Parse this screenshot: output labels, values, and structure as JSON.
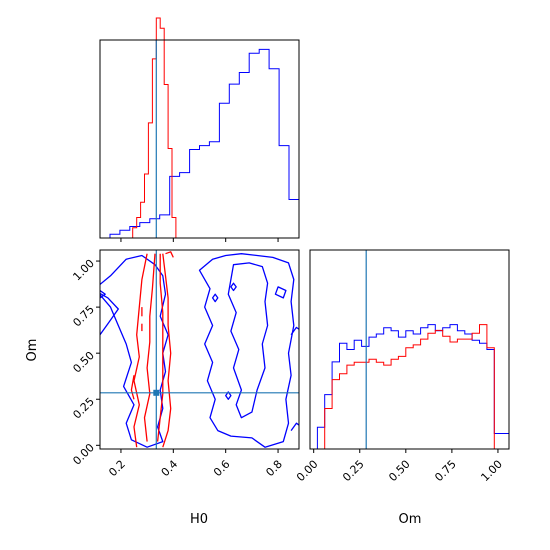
{
  "chart_data": {
    "type": "corner",
    "parameters": [
      "H0",
      "Om"
    ],
    "truths": {
      "H0": 0.335,
      "Om": 0.285
    },
    "colors": {
      "run_a": "#0000ff",
      "run_b": "#ff0000",
      "truth": "#1f77b4"
    },
    "H0_range": [
      0.12,
      0.88
    ],
    "Om_range": [
      -0.02,
      1.06
    ],
    "H0_ticks": [
      "0.2",
      "0.4",
      "0.6",
      "0.8"
    ],
    "Om_ticks": [
      "0.00",
      "0.25",
      "0.50",
      "0.75",
      "1.00"
    ],
    "xlabel_h0": "H0",
    "xlabel_om": "Om",
    "ylabel_om": "Om",
    "h0_hist_blue": {
      "edges": [
        0.12,
        0.158,
        0.196,
        0.234,
        0.272,
        0.31,
        0.348,
        0.386,
        0.424,
        0.462,
        0.5,
        0.538,
        0.576,
        0.614,
        0.652,
        0.69,
        0.728,
        0.766,
        0.804,
        0.842,
        0.88
      ],
      "counts": [
        0,
        2,
        4,
        6,
        8,
        10,
        12,
        32,
        34,
        46,
        48,
        50,
        70,
        80,
        86,
        96,
        98,
        88,
        48,
        20
      ]
    },
    "h0_hist_red": {
      "edges": [
        0.23,
        0.245,
        0.26,
        0.275,
        0.29,
        0.305,
        0.32,
        0.335,
        0.35,
        0.365,
        0.38,
        0.395,
        0.41
      ],
      "counts": [
        0,
        4,
        8,
        14,
        25,
        45,
        70,
        86,
        82,
        60,
        35,
        8
      ]
    },
    "om_hist_blue": {
      "edges": [
        -0.02,
        0.02,
        0.06,
        0.1,
        0.14,
        0.18,
        0.22,
        0.26,
        0.3,
        0.34,
        0.38,
        0.42,
        0.46,
        0.5,
        0.54,
        0.58,
        0.62,
        0.66,
        0.7,
        0.74,
        0.78,
        0.82,
        0.86,
        0.9,
        0.94,
        0.98,
        1.02,
        1.06
      ],
      "counts": [
        0,
        14,
        35,
        56,
        68,
        64,
        70,
        66,
        72,
        74,
        78,
        76,
        72,
        76,
        74,
        78,
        80,
        76,
        78,
        80,
        76,
        74,
        70,
        68,
        64,
        10,
        10
      ]
    },
    "om_hist_red": {
      "edges": [
        -0.02,
        0.02,
        0.06,
        0.1,
        0.14,
        0.18,
        0.22,
        0.26,
        0.3,
        0.34,
        0.38,
        0.42,
        0.46,
        0.5,
        0.54,
        0.58,
        0.62,
        0.66,
        0.7,
        0.74,
        0.78,
        0.82,
        0.86,
        0.9,
        0.94,
        0.98,
        1.02
      ],
      "counts": [
        0,
        0,
        28,
        48,
        52,
        58,
        60,
        60,
        62,
        60,
        58,
        62,
        64,
        70,
        72,
        76,
        80,
        82,
        78,
        74,
        76,
        76,
        80,
        86,
        70,
        0
      ]
    }
  }
}
